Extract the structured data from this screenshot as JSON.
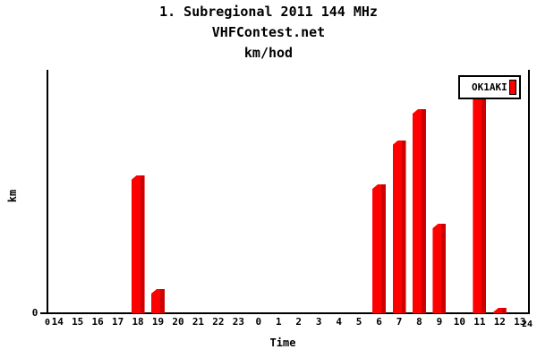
{
  "page": {
    "background": "#ffffff"
  },
  "title": {
    "line1": "1. Subregional 2011 144 MHz",
    "line2": "VHFContest.net",
    "line3": "km/hod"
  },
  "legend": {
    "label": "OK1AKI",
    "marker_color": "#ff0000",
    "position": "top-right"
  },
  "axes": {
    "y_label": "km",
    "x_label": "Time",
    "y_zero_label": "0",
    "x_start_label": "0",
    "x_end_label": "24"
  },
  "colors": {
    "bar_front": "#ff0000",
    "bar_side": "#cc0000",
    "axis": "#000000",
    "legend_border": "#000000",
    "text": "#000000"
  },
  "chart_data": {
    "type": "bar",
    "title": "1. Subregional 2011 144 MHz",
    "subtitle": "VHFContest.net",
    "value_caption": "km/hod",
    "xlabel": "Time",
    "ylabel": "km",
    "legend_position": "top-right",
    "grid": false,
    "categories": [
      "14",
      "15",
      "16",
      "17",
      "18",
      "19",
      "20",
      "21",
      "22",
      "23",
      "0",
      "1",
      "2",
      "3",
      "4",
      "5",
      "6",
      "7",
      "8",
      "9",
      "10",
      "11",
      "12",
      "13"
    ],
    "x_axis_endpoint_labels": [
      "0",
      "24"
    ],
    "series": [
      {
        "name": "OK1AKI",
        "color": "#ff0000",
        "values": [
          0,
          0,
          0,
          0,
          154,
          27,
          0,
          0,
          0,
          0,
          0,
          0,
          0,
          0,
          0,
          0,
          144,
          193,
          228,
          100,
          0,
          250,
          6,
          0
        ]
      }
    ],
    "y_axis_tick_labels": [
      "0"
    ],
    "y_scale_note": "y-axis has no numeric scale except 0; values are relative units estimated from bar pixel heights",
    "note": "bar at hour 11 extends behind the legend box, so its value is a lower-bound estimate; tiny bar just before 24 (hour-13 bin edge) is near zero"
  }
}
